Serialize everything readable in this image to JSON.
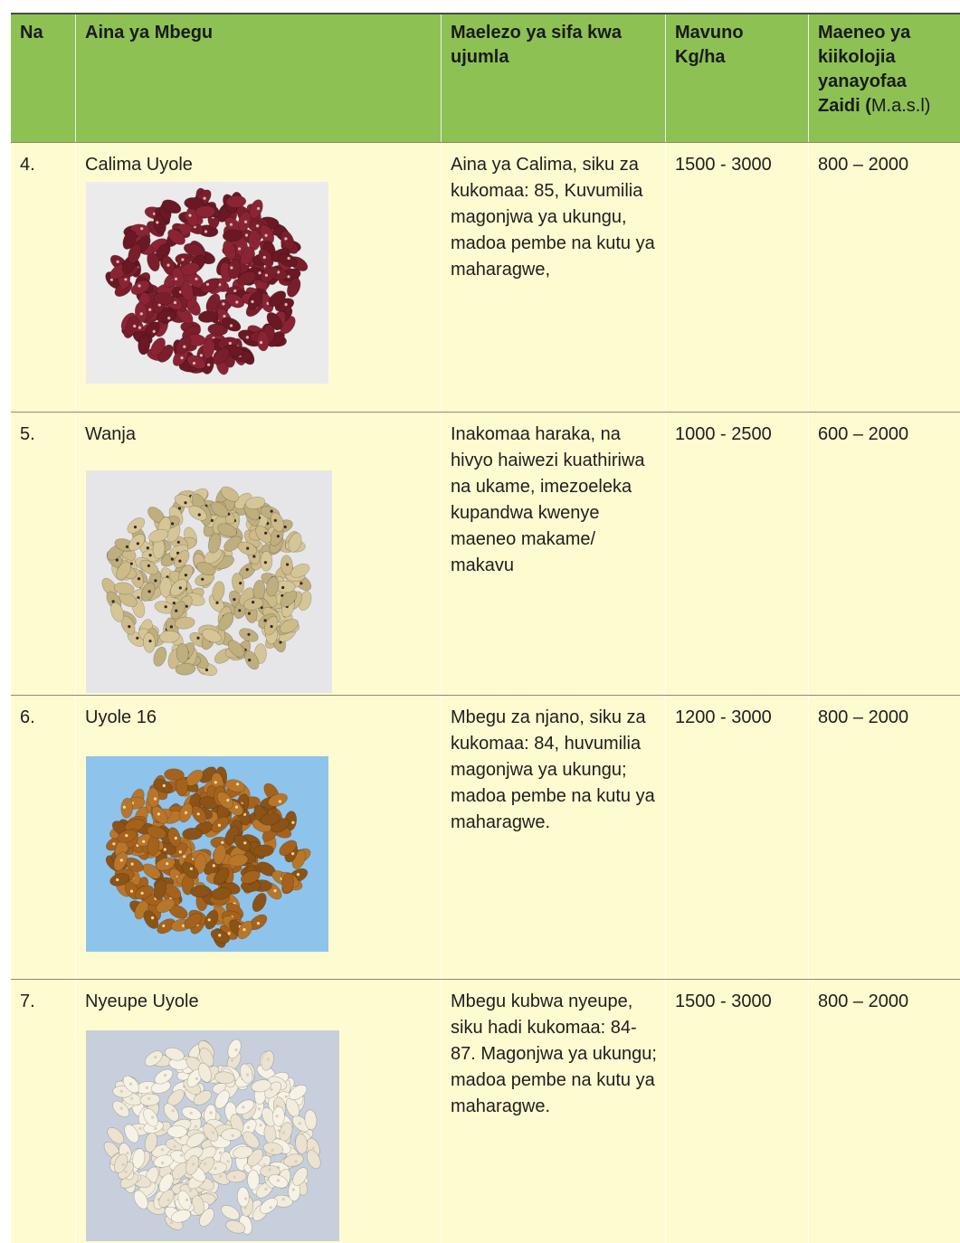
{
  "table": {
    "header": [
      "Na",
      "Aina ya Mbegu",
      "Maelezo ya sifa kwa ujumla",
      "Mavuno Kg/ha",
      {
        "bold": "Maeneo ya kiikolojia yanayofaa Zaidi (",
        "normal": "M.a.s.l)"
      }
    ],
    "rows": [
      [
        "4.",
        "Calima Uyole",
        "Aina ya Calima, siku za kukomaa: 85, Kuvumilia magonjwa ya ukungu, madoa pembe na kutu ya maharagwe,",
        "1500 - 3000",
        "800 – 2000"
      ],
      [
        "5.",
        "Wanja",
        "Inakomaa haraka, na hivyo haiwezi kuathiriwa na ukame, imezoeleka kupandwa kwenye maeneo makame/ makavu",
        "1000 - 2500",
        "600 – 2000"
      ],
      [
        "6.",
        "Uyole 16",
        "Mbegu za njano, siku za kukomaa: 84, huvumilia magonjwa ya ukungu; madoa pembe na kutu ya maharagwe.",
        "1200 - 3000",
        "800 – 2000"
      ],
      [
        "7.",
        "Nyeupe Uyole",
        "Mbegu kubwa nyeupe, siku hadi kukomaa: 84-87. Magonjwa ya ukungu; madoa pembe na kutu ya maharagwe.",
        "1500 - 3000",
        "800 – 2000"
      ]
    ]
  }
}
